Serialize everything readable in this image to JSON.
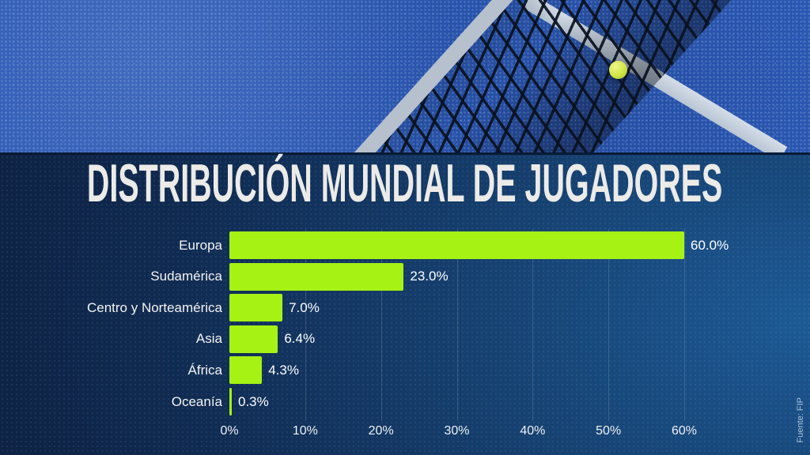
{
  "title": "DISTRIBUCIÓN MUNDIAL DE JUGADORES",
  "source": "Fuente: FIP",
  "colors": {
    "bar_green": "#a6f214",
    "panel_navy": "#102a50",
    "court_blue": "#2b59b5",
    "title_white": "#ecebe7",
    "ball_yellow": "#cfe546"
  },
  "hero": {
    "scene": "blue padel court seen from above with black net diagonal, white court line and a yellow padel ball"
  },
  "chart_data": {
    "type": "bar",
    "orientation": "horizontal",
    "title": "DISTRIBUCIÓN MUNDIAL DE JUGADORES",
    "categories": [
      "Europa",
      "Sudamérica",
      "Centro y Norteamérica",
      "Asia",
      "África",
      "Oceanía"
    ],
    "values": [
      60.0,
      23.0,
      7.0,
      6.4,
      4.3,
      0.3
    ],
    "value_labels": [
      "60.0%",
      "23.0%",
      "7.0%",
      "6.4%",
      "4.3%",
      "0.3%"
    ],
    "x_ticks": [
      "0%",
      "10%",
      "20%",
      "30%",
      "40%",
      "50%",
      "60%"
    ],
    "xlim": [
      0,
      60
    ],
    "xlabel": "",
    "ylabel": "",
    "grid": true,
    "legend": "none",
    "bar_color": "#a6f214"
  }
}
